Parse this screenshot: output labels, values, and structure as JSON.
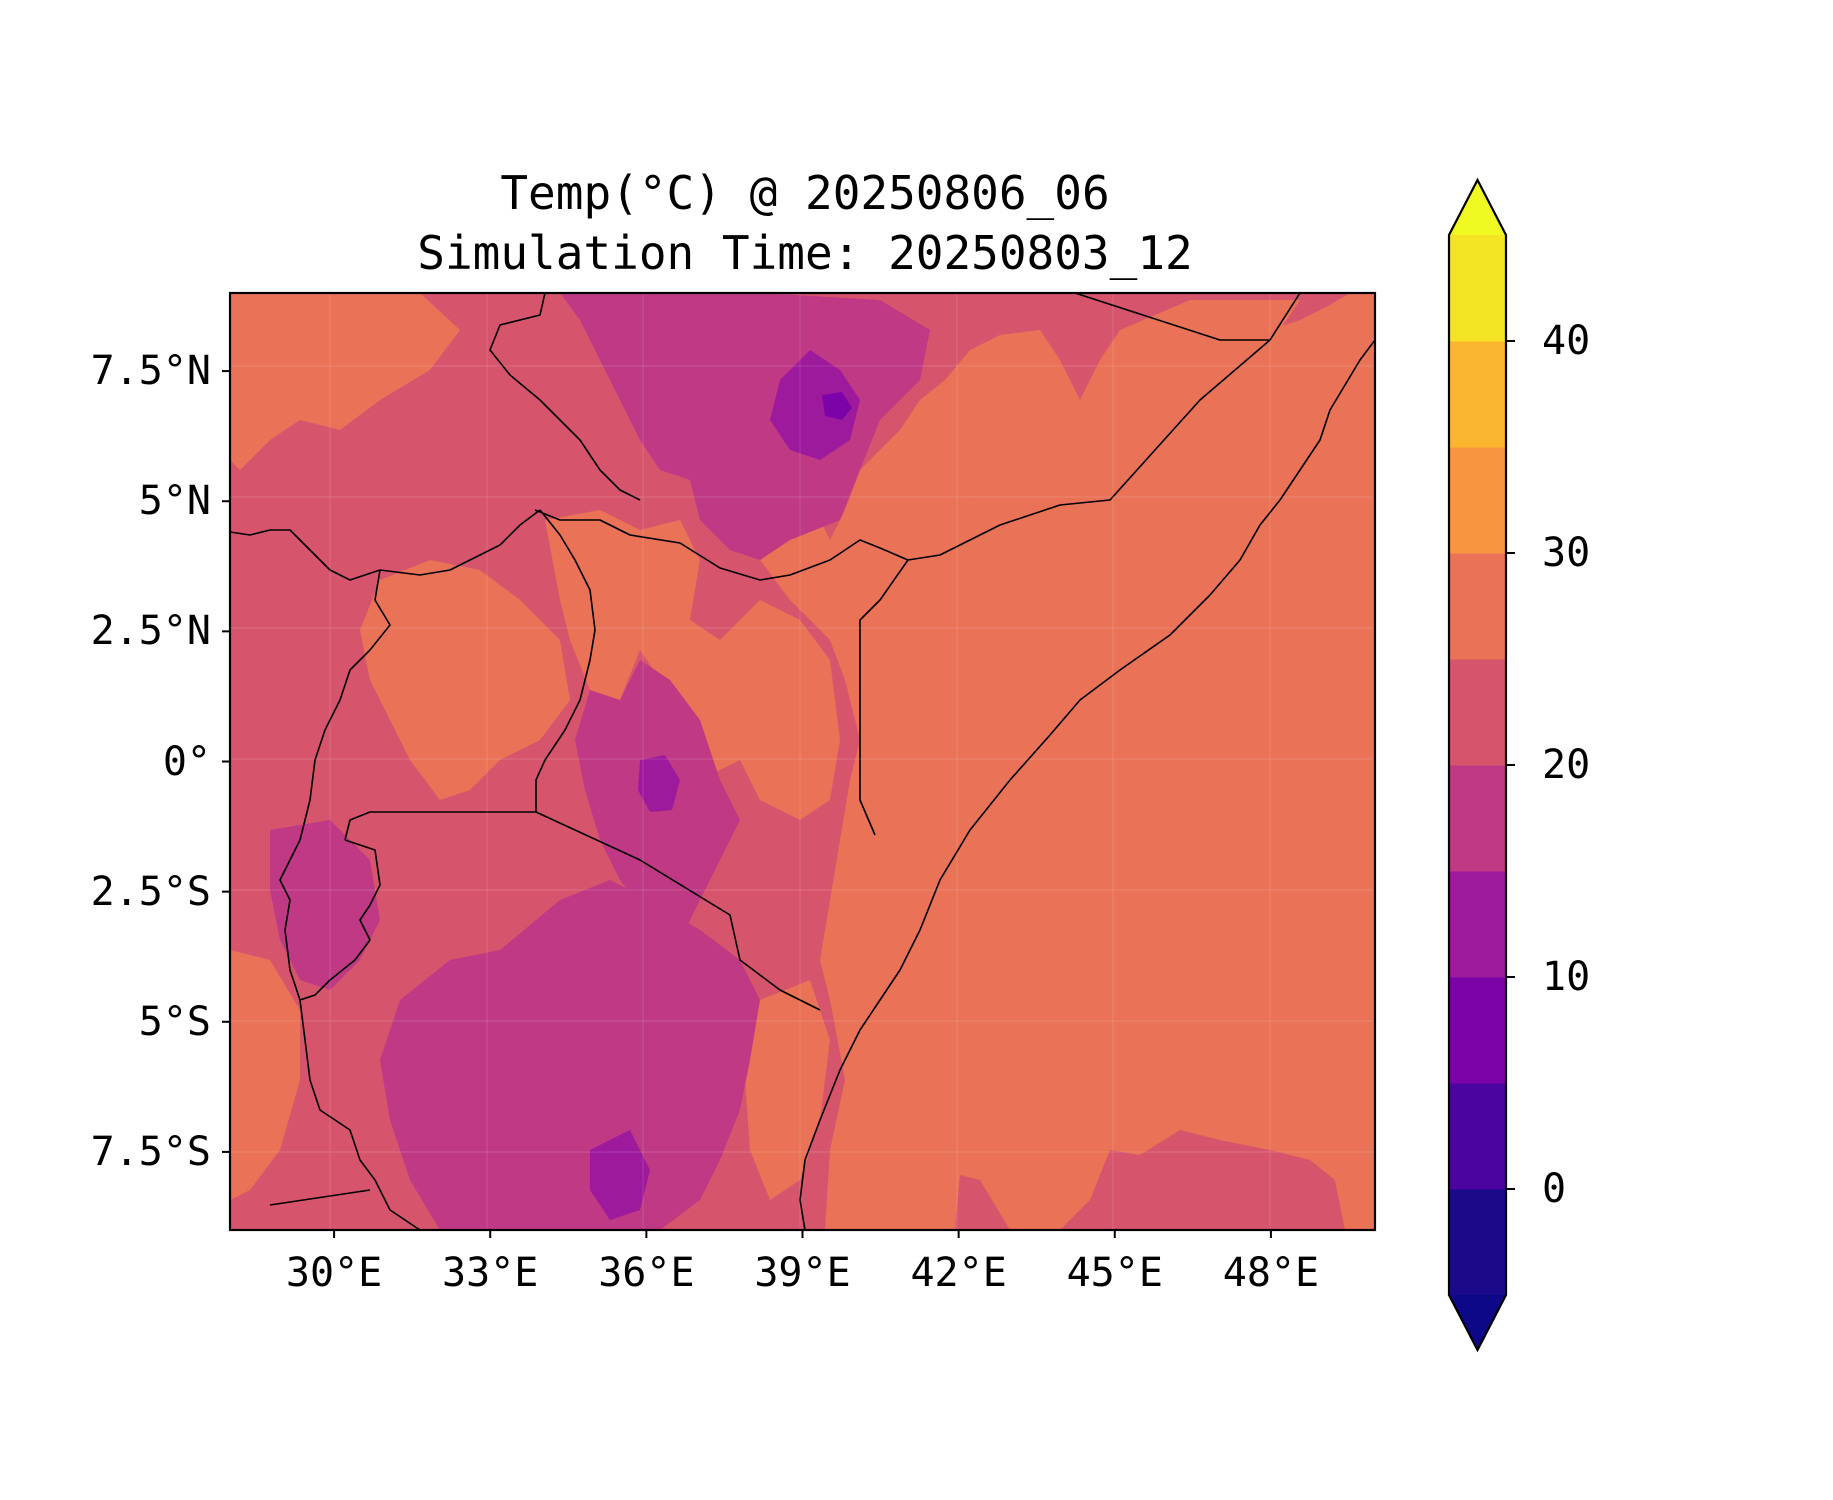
{
  "title": "Temp(°C) @ 20250806_06",
  "subtitle": "Simulation Time: 20250803_12",
  "map": {
    "lon_range": [
      28,
      50
    ],
    "lat_range": [
      -9,
      9
    ],
    "lat_ticks": [
      {
        "value": 7.5,
        "label": "7.5°N"
      },
      {
        "value": 5,
        "label": "5°N"
      },
      {
        "value": 2.5,
        "label": "2.5°N"
      },
      {
        "value": 0,
        "label": "0°"
      },
      {
        "value": -2.5,
        "label": "2.5°S"
      },
      {
        "value": -5,
        "label": "5°S"
      },
      {
        "value": -7.5,
        "label": "7.5°S"
      }
    ],
    "lon_ticks": [
      {
        "value": 30,
        "label": "30°E"
      },
      {
        "value": 33,
        "label": "33°E"
      },
      {
        "value": 36,
        "label": "36°E"
      },
      {
        "value": 39,
        "label": "39°E"
      },
      {
        "value": 42,
        "label": "42°E"
      },
      {
        "value": 45,
        "label": "45°E"
      },
      {
        "value": 48,
        "label": "48°E"
      }
    ]
  },
  "colorbar": {
    "levels": [
      -5,
      0,
      5,
      10,
      15,
      20,
      25,
      30,
      35,
      40,
      45
    ],
    "colors": [
      "#1a0a8a",
      "#4b04a0",
      "#7b03a8",
      "#9e1a9c",
      "#bf3984",
      "#d6556d",
      "#e97257",
      "#f89540",
      "#fcb52e",
      "#f4e424"
    ],
    "under_color": "#0d0887",
    "over_color": "#f0f921",
    "extend": "both",
    "ticks": [
      {
        "value": 0,
        "label": "0"
      },
      {
        "value": 10,
        "label": "10"
      },
      {
        "value": 20,
        "label": "20"
      },
      {
        "value": 30,
        "label": "30"
      },
      {
        "value": 40,
        "label": "40"
      }
    ]
  }
}
